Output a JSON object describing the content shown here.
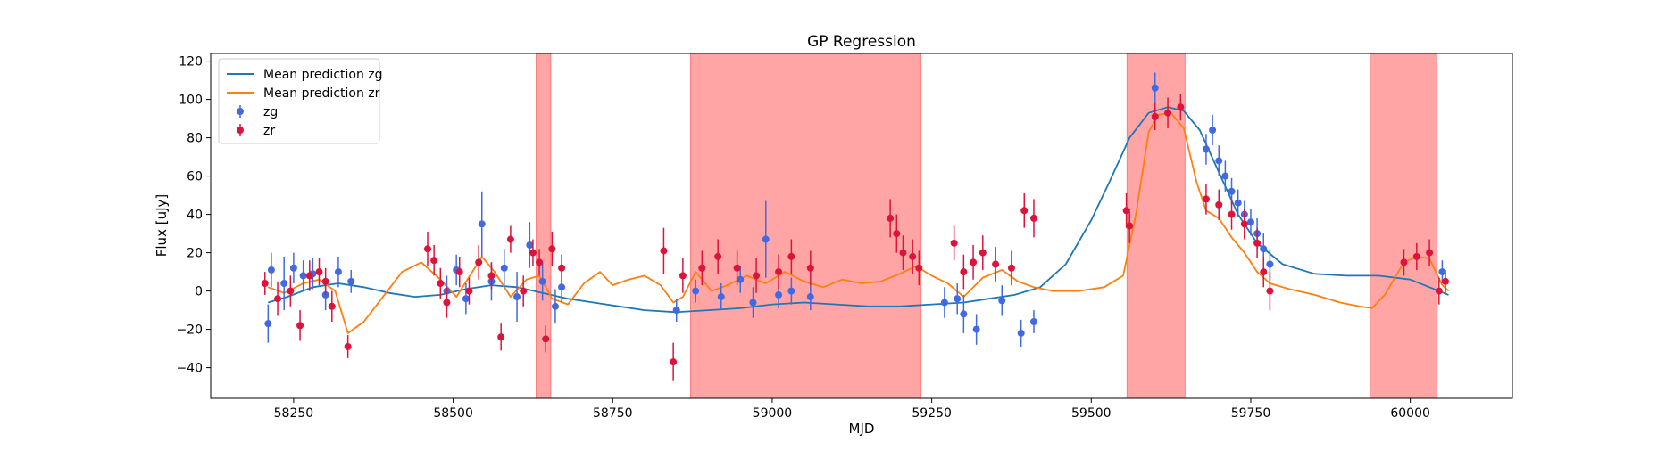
{
  "chart_data": {
    "type": "scatter",
    "title": "GP Regression",
    "xlabel": "MJD",
    "ylabel": "Flux [uJy]",
    "xlim": [
      58120,
      60160
    ],
    "ylim": [
      -56,
      124
    ],
    "xticks": [
      58250,
      58500,
      58750,
      59000,
      59250,
      59500,
      59750,
      60000
    ],
    "yticks": [
      -40,
      -20,
      0,
      20,
      40,
      60,
      80,
      100,
      120
    ],
    "grid": false,
    "legend_position": "top-left",
    "shaded_intervals": [
      [
        58630,
        58653
      ],
      [
        58872,
        59233
      ],
      [
        59556,
        59647
      ],
      [
        59937,
        60042
      ]
    ],
    "shade_color": "#ff5b5b",
    "series": [
      {
        "name": "Mean prediction zg",
        "kind": "line",
        "color": "#1f77b4",
        "x": [
          58210,
          58240,
          58280,
          58320,
          58360,
          58400,
          58440,
          58480,
          58520,
          58560,
          58600,
          58640,
          58680,
          58720,
          58760,
          58800,
          58850,
          58900,
          58950,
          59000,
          59050,
          59100,
          59150,
          59200,
          59250,
          59300,
          59340,
          59380,
          59420,
          59460,
          59500,
          59530,
          59560,
          59590,
          59620,
          59645,
          59670,
          59700,
          59730,
          59760,
          59800,
          59850,
          59900,
          59950,
          60000,
          60030,
          60060
        ],
        "y": [
          -6,
          -3,
          2,
          4,
          2,
          -1,
          -3,
          -2,
          1,
          3,
          2,
          -1,
          -4,
          -6,
          -8,
          -10,
          -11,
          -10,
          -9,
          -7,
          -6,
          -7,
          -8,
          -8,
          -7,
          -6,
          -4,
          -2,
          2,
          14,
          37,
          58,
          80,
          93,
          96,
          94,
          84,
          62,
          40,
          25,
          14,
          9,
          8,
          8,
          6,
          2,
          -2
        ]
      },
      {
        "name": "Mean prediction zr",
        "kind": "line",
        "color": "#ff7f0e",
        "x": [
          58210,
          58235,
          58265,
          58290,
          58315,
          58335,
          58360,
          58390,
          58420,
          58450,
          58480,
          58505,
          58530,
          58545,
          58565,
          58590,
          58615,
          58635,
          58655,
          58680,
          58705,
          58730,
          58750,
          58775,
          58800,
          58825,
          58845,
          58860,
          58880,
          58905,
          58930,
          58960,
          58990,
          59020,
          59050,
          59080,
          59110,
          59140,
          59170,
          59200,
          59225,
          59250,
          59275,
          59300,
          59330,
          59360,
          59385,
          59410,
          59440,
          59480,
          59520,
          59550,
          59570,
          59590,
          59605,
          59625,
          59645,
          59665,
          59680,
          59700,
          59720,
          59740,
          59760,
          59780,
          59810,
          59850,
          59890,
          59920,
          59940,
          59960,
          59990,
          60010,
          60030,
          60050,
          60060
        ],
        "y": [
          2,
          -1,
          4,
          6,
          0,
          -22,
          -16,
          -3,
          10,
          15,
          6,
          -3,
          10,
          18,
          10,
          -3,
          6,
          8,
          -4,
          -7,
          4,
          10,
          3,
          6,
          8,
          3,
          -6,
          -3,
          10,
          0,
          3,
          8,
          4,
          10,
          5,
          2,
          6,
          4,
          5,
          9,
          13,
          8,
          4,
          -3,
          7,
          11,
          5,
          2,
          0,
          0,
          2,
          8,
          40,
          83,
          92,
          93,
          85,
          57,
          42,
          38,
          28,
          20,
          10,
          4,
          1,
          -2,
          -6,
          -8,
          -9,
          -2,
          15,
          18,
          17,
          3,
          0
        ]
      },
      {
        "name": "zg",
        "kind": "errorbar",
        "color": "#4169e1",
        "x": [
          58210,
          58215,
          58235,
          58250,
          58265,
          58280,
          58300,
          58320,
          58340,
          58490,
          58505,
          58520,
          58545,
          58560,
          58580,
          58600,
          58620,
          58640,
          58660,
          58670,
          58850,
          58880,
          58920,
          58950,
          58970,
          58990,
          59010,
          59030,
          59060,
          59270,
          59290,
          59300,
          59320,
          59360,
          59390,
          59410,
          59600,
          59680,
          59690,
          59700,
          59710,
          59720,
          59730,
          59740,
          59750,
          59760,
          59770,
          59780,
          60050
        ],
        "y": [
          -17,
          11,
          4,
          12,
          8,
          9,
          -2,
          10,
          5,
          0,
          11,
          -4,
          35,
          5,
          12,
          -3,
          24,
          5,
          -8,
          2,
          -10,
          0,
          -3,
          6,
          -6,
          27,
          -2,
          0,
          -3,
          -6,
          -4,
          -12,
          -20,
          -5,
          -22,
          -16,
          106,
          74,
          84,
          68,
          60,
          52,
          46,
          40,
          36,
          30,
          22,
          14,
          10
        ],
        "err": [
          10,
          9,
          14,
          8,
          8,
          8,
          8,
          8,
          6,
          8,
          8,
          8,
          17,
          10,
          10,
          13,
          12,
          10,
          9,
          8,
          6,
          6,
          7,
          7,
          8,
          20,
          7,
          7,
          7,
          8,
          8,
          10,
          8,
          8,
          7,
          6,
          8,
          8,
          8,
          8,
          8,
          7,
          7,
          7,
          7,
          8,
          8,
          8,
          6
        ]
      },
      {
        "name": "zr",
        "kind": "errorbar",
        "color": "#dc143c",
        "x": [
          58205,
          58225,
          58245,
          58260,
          58275,
          58290,
          58300,
          58310,
          58335,
          58460,
          58470,
          58480,
          58490,
          58510,
          58525,
          58540,
          58560,
          58575,
          58590,
          58610,
          58625,
          58635,
          58645,
          58655,
          58670,
          58830,
          58845,
          58860,
          58890,
          58915,
          58945,
          58975,
          59010,
          59030,
          59060,
          59185,
          59195,
          59205,
          59220,
          59230,
          59285,
          59300,
          59315,
          59330,
          59350,
          59375,
          59395,
          59410,
          59555,
          59560,
          59600,
          59620,
          59640,
          59680,
          59700,
          59720,
          59740,
          59760,
          59770,
          59780,
          59990,
          60010,
          60030,
          60045,
          60055
        ],
        "y": [
          4,
          -4,
          0,
          -18,
          8,
          10,
          5,
          -8,
          -29,
          22,
          16,
          4,
          -6,
          10,
          0,
          15,
          8,
          -24,
          27,
          0,
          20,
          15,
          -25,
          22,
          12,
          21,
          -37,
          8,
          12,
          18,
          12,
          8,
          10,
          18,
          12,
          38,
          30,
          20,
          18,
          12,
          25,
          10,
          15,
          20,
          14,
          12,
          42,
          38,
          42,
          34,
          91,
          93,
          96,
          48,
          45,
          40,
          35,
          25,
          10,
          0,
          15,
          18,
          20,
          0,
          5
        ],
        "err": [
          6,
          9,
          8,
          8,
          8,
          7,
          7,
          8,
          6,
          9,
          8,
          8,
          8,
          8,
          7,
          9,
          7,
          7,
          7,
          8,
          7,
          7,
          7,
          9,
          7,
          12,
          10,
          9,
          9,
          9,
          9,
          9,
          9,
          9,
          9,
          10,
          10,
          9,
          9,
          9,
          9,
          9,
          9,
          9,
          9,
          9,
          9,
          10,
          9,
          9,
          7,
          8,
          7,
          8,
          8,
          8,
          8,
          8,
          8,
          10,
          7,
          7,
          7,
          7,
          6
        ]
      }
    ]
  }
}
